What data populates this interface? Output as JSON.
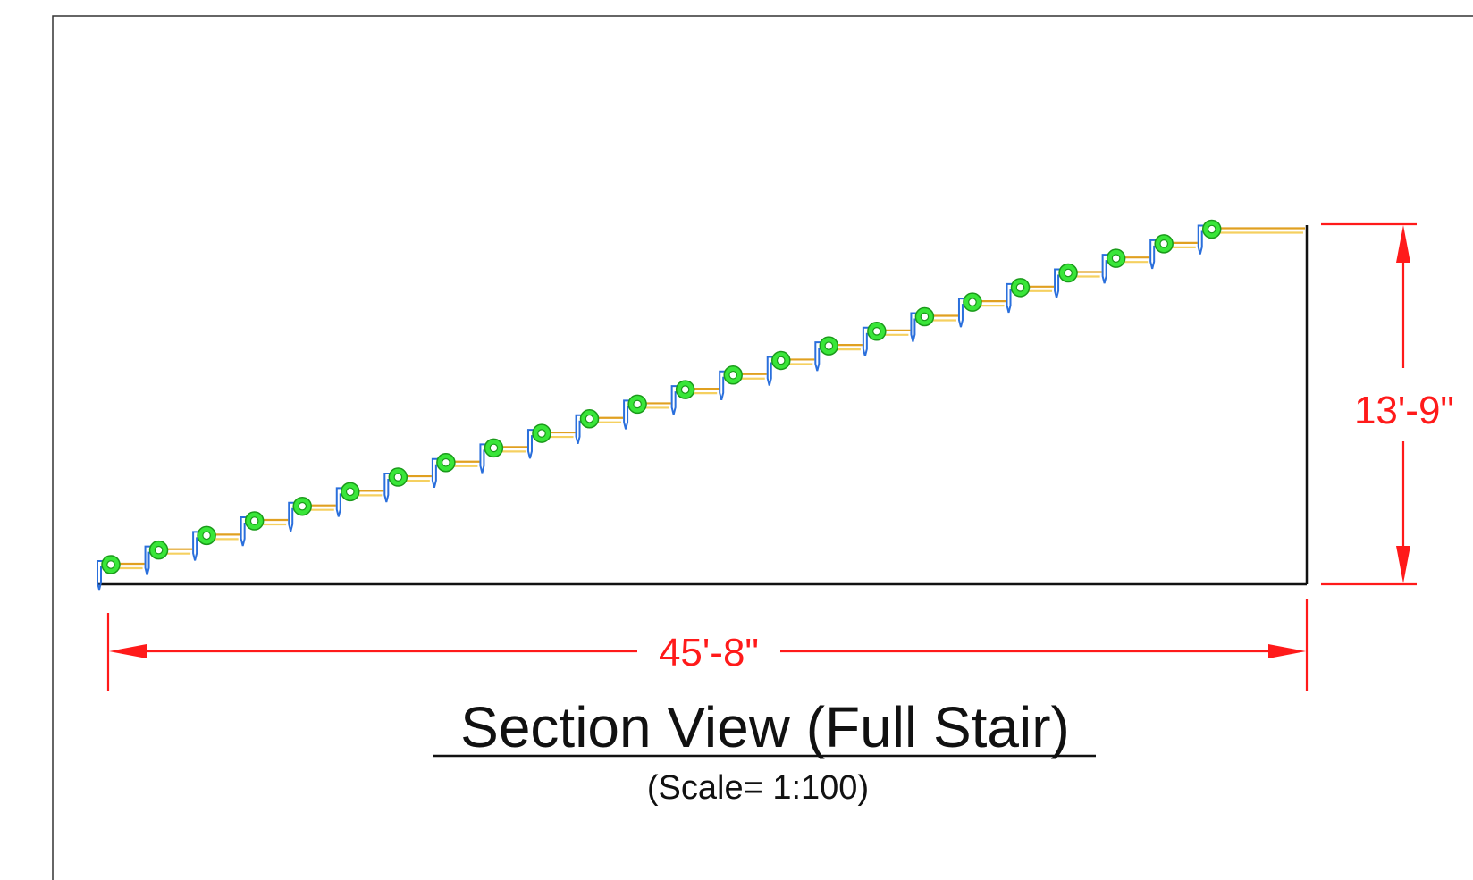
{
  "drawing": {
    "title": "Section View (Full Stair)",
    "scale": "(Scale= 1:100)",
    "dimensions": {
      "horizontal": "45'-8\"",
      "vertical": "13'-9\""
    },
    "stair": {
      "step_count": 24
    },
    "colors": {
      "dimension": "#ff1a1a",
      "tread": "#e0a020",
      "nosing": "#2a6fdc",
      "ring": "#39e639",
      "outline": "#111111"
    }
  }
}
